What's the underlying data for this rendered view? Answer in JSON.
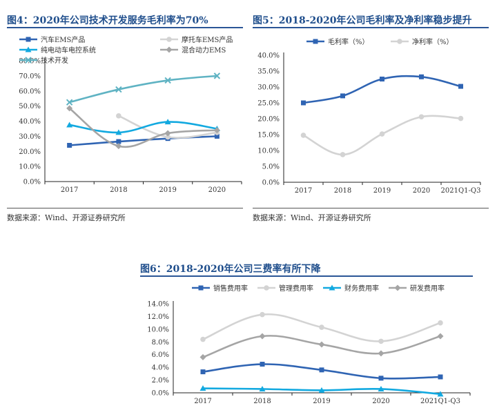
{
  "figures": [
    {
      "title": "图4：2020年公司技术开发服务毛利率为70%",
      "source": "数据来源：Wind、开源证券研究所"
    },
    {
      "title": "图5：2018-2020年公司毛利率及净利率稳步提升",
      "source": "数据来源：Wind、开源证券研究所"
    },
    {
      "title": "图6：2018-2020年公司三费率有所下降"
    }
  ],
  "colors": {
    "title": "#1f4e8c",
    "rule": "#2a5596"
  },
  "chart_data": [
    {
      "type": "line",
      "categories": [
        "2017",
        "2018",
        "2019",
        "2020"
      ],
      "series": [
        {
          "name": "汽车EMS产品",
          "color": "#2f64b3",
          "marker": "square",
          "values": [
            24,
            26.5,
            28.5,
            30
          ]
        },
        {
          "name": "摩托车EMS产品",
          "color": "#d3d3d3",
          "marker": "circle",
          "values": [
            null,
            43.5,
            29.5,
            32.5
          ]
        },
        {
          "name": "纯电动车电控系统",
          "color": "#12a9e0",
          "marker": "triangle",
          "values": [
            37.5,
            32.5,
            39.5,
            35
          ]
        },
        {
          "name": "混合动力EMS",
          "color": "#a5a5a5",
          "marker": "diamond",
          "values": [
            48.5,
            23.5,
            32,
            34
          ]
        },
        {
          "name": "技术开发",
          "color": "#5fb3c3",
          "marker": "x",
          "values": [
            52.5,
            61,
            67,
            70
          ]
        }
      ],
      "ylim": [
        0,
        80
      ],
      "yticks": [
        "0.0%",
        "10.0%",
        "20.0%",
        "30.0%",
        "40.0%",
        "50.0%",
        "60.0%",
        "70.0%",
        "80.0%"
      ],
      "legend": "top-left"
    },
    {
      "type": "line",
      "categories": [
        "2017",
        "2018",
        "2019",
        "2020",
        "2021Q1-Q3"
      ],
      "series": [
        {
          "name": "毛利率（%）",
          "color": "#2f64b3",
          "marker": "square",
          "values": [
            25,
            27.2,
            32.5,
            33.2,
            30.2
          ]
        },
        {
          "name": "净利率（%）",
          "color": "#d3d3d3",
          "marker": "circle",
          "values": [
            14.8,
            8.7,
            15.2,
            20.6,
            20.1
          ]
        }
      ],
      "ylim": [
        0,
        40
      ],
      "yticks": [
        "0.0%",
        "5.0%",
        "10.0%",
        "15.0%",
        "20.0%",
        "25.0%",
        "30.0%",
        "35.0%",
        "40.0%"
      ],
      "legend": "top"
    },
    {
      "type": "line",
      "categories": [
        "2017",
        "2018",
        "2019",
        "2020",
        "2021Q1-Q3"
      ],
      "series": [
        {
          "name": "销售费用率",
          "color": "#2f64b3",
          "marker": "square",
          "values": [
            3.3,
            4.5,
            3.6,
            2.3,
            2.5
          ]
        },
        {
          "name": "管理费用率",
          "color": "#d3d3d3",
          "marker": "circle",
          "values": [
            8.4,
            12.3,
            10.3,
            8.1,
            11.0
          ]
        },
        {
          "name": "财务费用率",
          "color": "#12a9e0",
          "marker": "triangle",
          "values": [
            0.7,
            0.6,
            0.4,
            0.6,
            -0.2
          ]
        },
        {
          "name": "研发费用率",
          "color": "#a5a5a5",
          "marker": "diamond",
          "values": [
            5.6,
            8.9,
            7.6,
            6.2,
            8.9
          ]
        }
      ],
      "ylim": [
        0,
        14
      ],
      "yticks": [
        "0.0%",
        "2.0%",
        "4.0%",
        "6.0%",
        "8.0%",
        "10.0%",
        "12.0%",
        "14.0%"
      ],
      "legend": "top"
    }
  ]
}
